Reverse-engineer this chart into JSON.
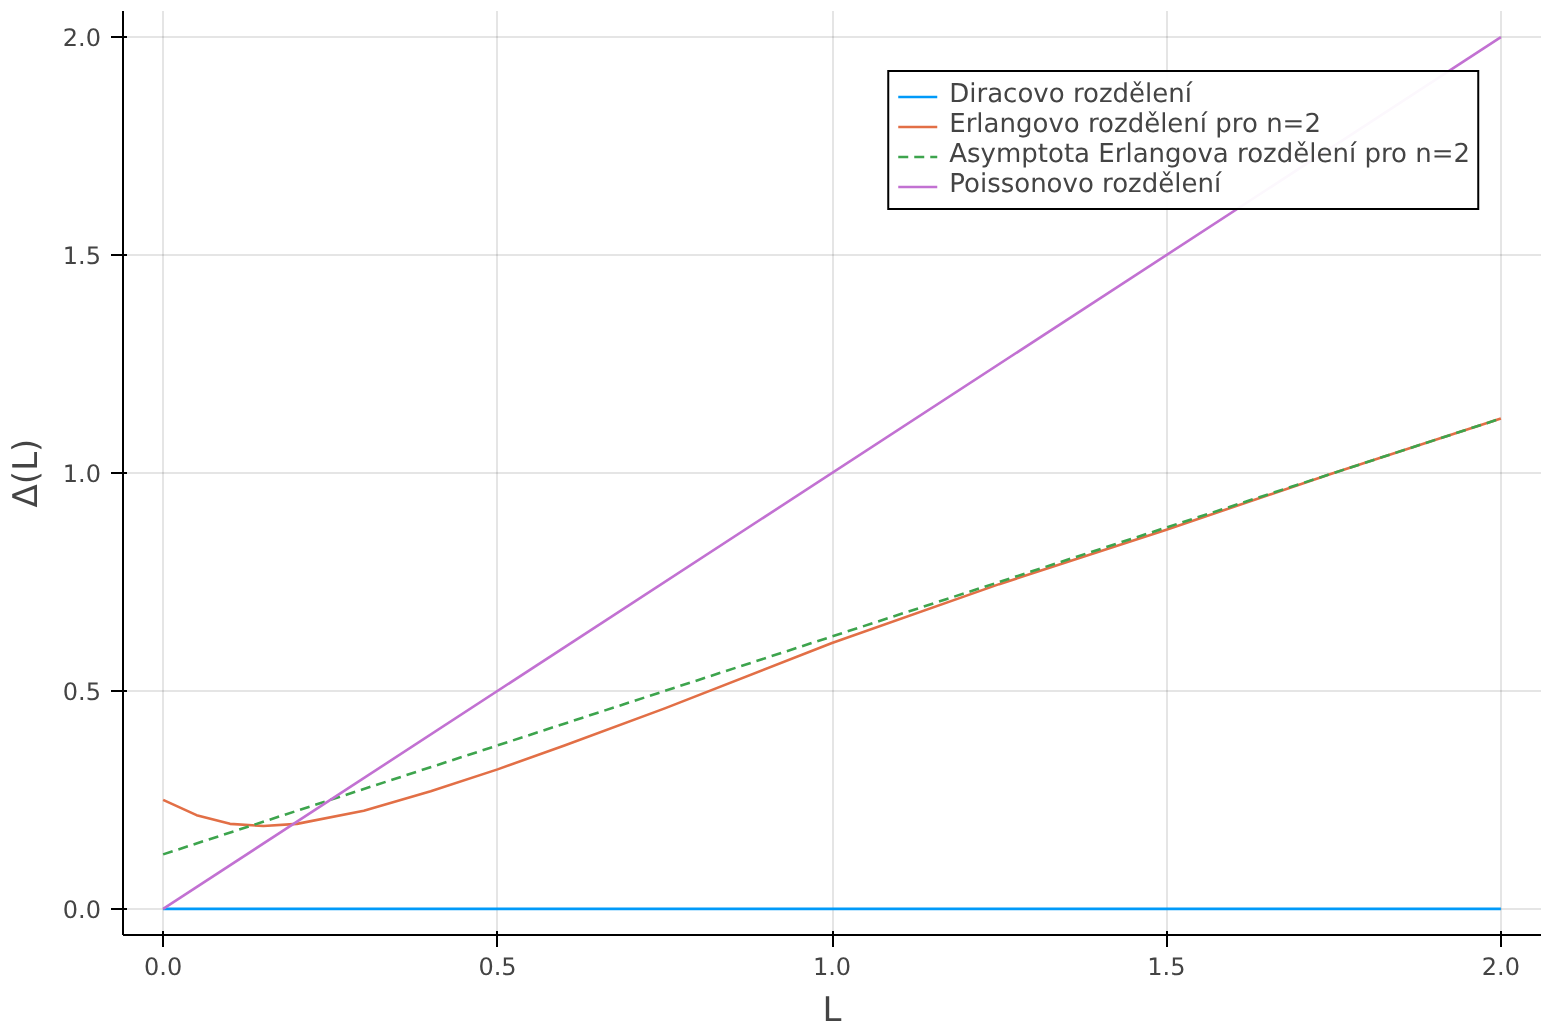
{
  "chart_data": {
    "type": "line",
    "xlabel": "L",
    "ylabel": "Δ(L)",
    "xlim": [
      -0.06,
      2.06
    ],
    "ylim": [
      -0.06,
      2.06
    ],
    "xticks": [
      {
        "value": 0,
        "label": "0.0"
      },
      0.5,
      {
        "value": 1,
        "label": "1.0"
      },
      1.5,
      {
        "value": 2,
        "label": "2.0"
      }
    ],
    "yticks": [
      {
        "value": 0,
        "label": "0.0"
      },
      0.5,
      {
        "value": 1,
        "label": "1.0"
      },
      1.5,
      {
        "value": 2,
        "label": "2.0"
      }
    ],
    "grid": true,
    "legend": "top right",
    "marker": "none",
    "series": [
      {
        "name": "Diracovo rozdělení",
        "color": "#009af9",
        "line_style": "solid",
        "x": [
          0,
          2
        ],
        "values": [
          0,
          0
        ]
      },
      {
        "name": "Erlangovo rozdělení pro n=2",
        "color": "#e26f46",
        "line_style": "solid",
        "x": [
          0,
          0.05,
          0.1,
          0.15,
          0.2,
          0.3,
          0.4,
          0.5,
          0.6,
          0.75,
          1.0,
          1.25,
          1.5,
          1.75,
          2.0
        ],
        "values": [
          0.25,
          0.215,
          0.195,
          0.19,
          0.195,
          0.225,
          0.27,
          0.32,
          0.375,
          0.46,
          0.61,
          0.745,
          0.87,
          1.0,
          1.125
        ]
      },
      {
        "name": "Asymptota Erlangova rozdělení pro n=2",
        "color": "#3da44d",
        "line_style": "dashed",
        "x": [
          0,
          2
        ],
        "values": [
          0.125,
          1.125
        ]
      },
      {
        "name": "Poissonovo rozdělení",
        "color": "#c271d2",
        "line_style": "solid",
        "x": [
          0,
          2
        ],
        "values": [
          0,
          2
        ]
      }
    ]
  }
}
